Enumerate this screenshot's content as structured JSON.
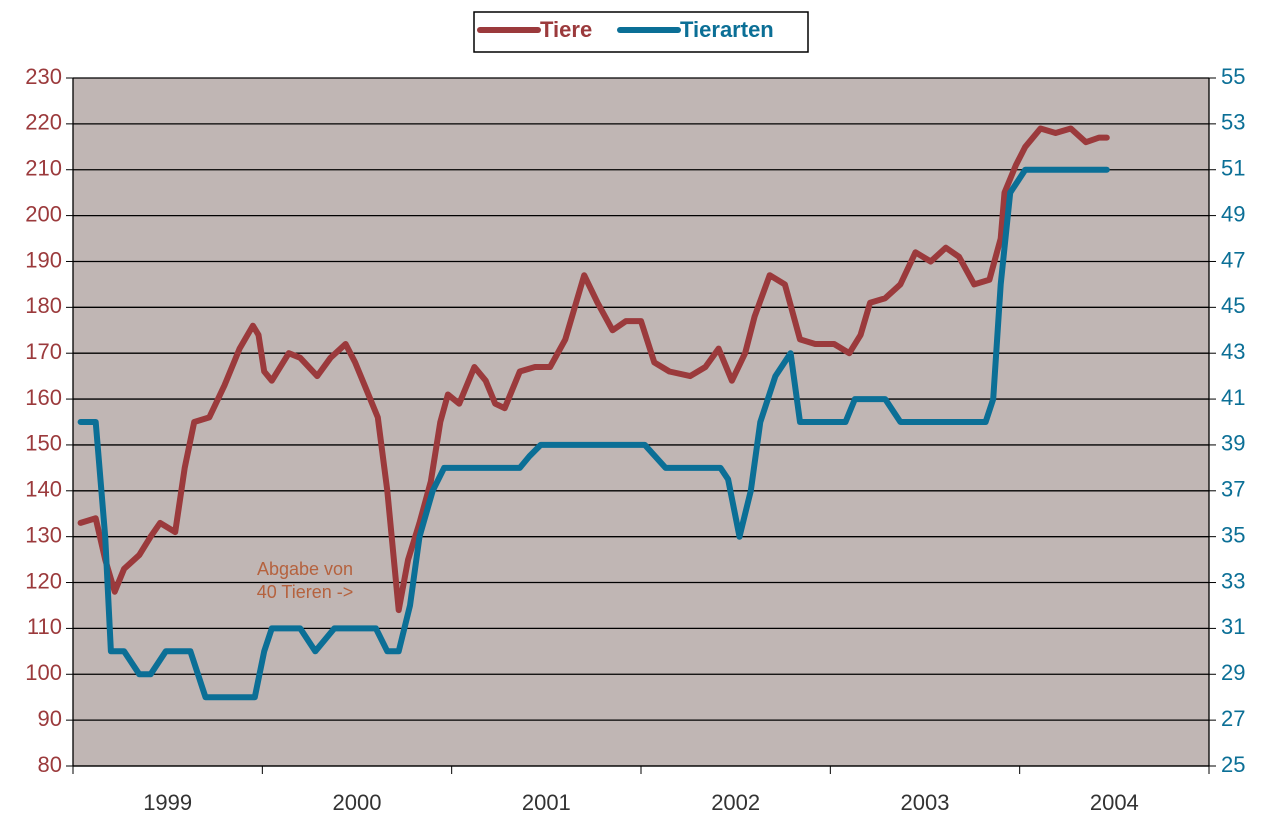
{
  "chart_data": {
    "type": "line",
    "xlim": [
      1999,
      2005
    ],
    "xticks": [
      1999,
      2000,
      2001,
      2002,
      2003,
      2004,
      2005
    ],
    "xlabels": [
      "1999",
      "2000",
      "2001",
      "2002",
      "2003",
      "2004"
    ],
    "ylim": [
      80,
      230
    ],
    "yticks": [
      80,
      90,
      100,
      110,
      120,
      130,
      140,
      150,
      160,
      170,
      180,
      190,
      200,
      210,
      220,
      230
    ],
    "y2lim": [
      25,
      55
    ],
    "y2ticks": [
      25,
      27,
      29,
      31,
      33,
      35,
      37,
      39,
      41,
      43,
      45,
      47,
      49,
      51,
      53,
      55
    ],
    "grid": true,
    "annotation": [
      "Abgabe von",
      "40 Tieren ->"
    ],
    "series": [
      {
        "name": "Tiere",
        "color": "#9b3a3c",
        "x": [
          1999.04,
          1999.12,
          1999.17,
          1999.22,
          1999.27,
          1999.35,
          1999.41,
          1999.46,
          1999.54,
          1999.59,
          1999.64,
          1999.72,
          1999.8,
          1999.88,
          1999.95,
          1999.98,
          2000.01,
          2000.05,
          2000.14,
          2000.2,
          2000.29,
          2000.36,
          2000.44,
          2000.49,
          2000.54,
          2000.61,
          2000.66,
          2000.72,
          2000.77,
          2000.83,
          2000.89,
          2000.94,
          2000.98,
          2001.04,
          2001.12,
          2001.18,
          2001.23,
          2001.28,
          2001.36,
          2001.44,
          2001.52,
          2001.6,
          2001.7,
          2001.77,
          2001.85,
          2001.92,
          2002.0,
          2002.07,
          2002.15,
          2002.26,
          2002.34,
          2002.41,
          2002.48,
          2002.55,
          2002.6,
          2002.68,
          2002.76,
          2002.84,
          2002.92,
          2003.02,
          2003.1,
          2003.16,
          2003.21,
          2003.29,
          2003.37,
          2003.45,
          2003.53,
          2003.61,
          2003.68,
          2003.76,
          2003.84,
          2003.9,
          2003.92,
          2003.98,
          2004.03,
          2004.11,
          2004.19,
          2004.27,
          2004.35,
          2004.42,
          2004.46
        ],
        "values": [
          133,
          134,
          125,
          118,
          123,
          126,
          130,
          133,
          131,
          145,
          155,
          156,
          163,
          171,
          176,
          174,
          166,
          164,
          170,
          169,
          165,
          169,
          172,
          168,
          163,
          156,
          140,
          114,
          125,
          133,
          142,
          155,
          161,
          159,
          167,
          164,
          159,
          158,
          166,
          167,
          167,
          173,
          187,
          181,
          175,
          177,
          177,
          168,
          166,
          165,
          167,
          171,
          164,
          170,
          178,
          187,
          185,
          173,
          172,
          172,
          170,
          174,
          181,
          182,
          185,
          192,
          190,
          193,
          191,
          185,
          186,
          195,
          205,
          211,
          215,
          219,
          218,
          219,
          216,
          217,
          217
        ]
      },
      {
        "name": "Tierarten",
        "color": "#0b6f96",
        "axis": "y2",
        "x": [
          1999.04,
          1999.12,
          1999.17,
          1999.2,
          1999.27,
          1999.35,
          1999.41,
          1999.49,
          1999.57,
          1999.62,
          1999.7,
          1999.8,
          1999.88,
          1999.96,
          2000.01,
          2000.05,
          2000.12,
          2000.2,
          2000.28,
          2000.38,
          2000.49,
          2000.6,
          2000.66,
          2000.72,
          2000.78,
          2000.83,
          2000.9,
          2000.96,
          2001.04,
          2001.15,
          2001.26,
          2001.36,
          2001.41,
          2001.47,
          2001.57,
          2001.78,
          2002.02,
          2002.13,
          2002.21,
          2002.31,
          2002.42,
          2002.46,
          2002.52,
          2002.58,
          2002.63,
          2002.71,
          2002.79,
          2002.84,
          2002.89,
          2003.0,
          2003.08,
          2003.13,
          2003.21,
          2003.29,
          2003.37,
          2003.45,
          2003.55,
          2003.76,
          2003.82,
          2003.86,
          2003.9,
          2003.95,
          2004.03,
          2004.11,
          2004.46
        ],
        "values": [
          40,
          40,
          35,
          30,
          30,
          29,
          29,
          30,
          30,
          30,
          28,
          28,
          28,
          28,
          30,
          31,
          31,
          31,
          30,
          31,
          31,
          31,
          30,
          30,
          32,
          35,
          37,
          38,
          38,
          38,
          38,
          38,
          38.5,
          39,
          39,
          39,
          39,
          38,
          38,
          38,
          38,
          37.5,
          35,
          37,
          40,
          42,
          43,
          40,
          40,
          40,
          40,
          41,
          41,
          41,
          40,
          40,
          40,
          40,
          40,
          41,
          46,
          50,
          51,
          51,
          51
        ]
      }
    ]
  }
}
